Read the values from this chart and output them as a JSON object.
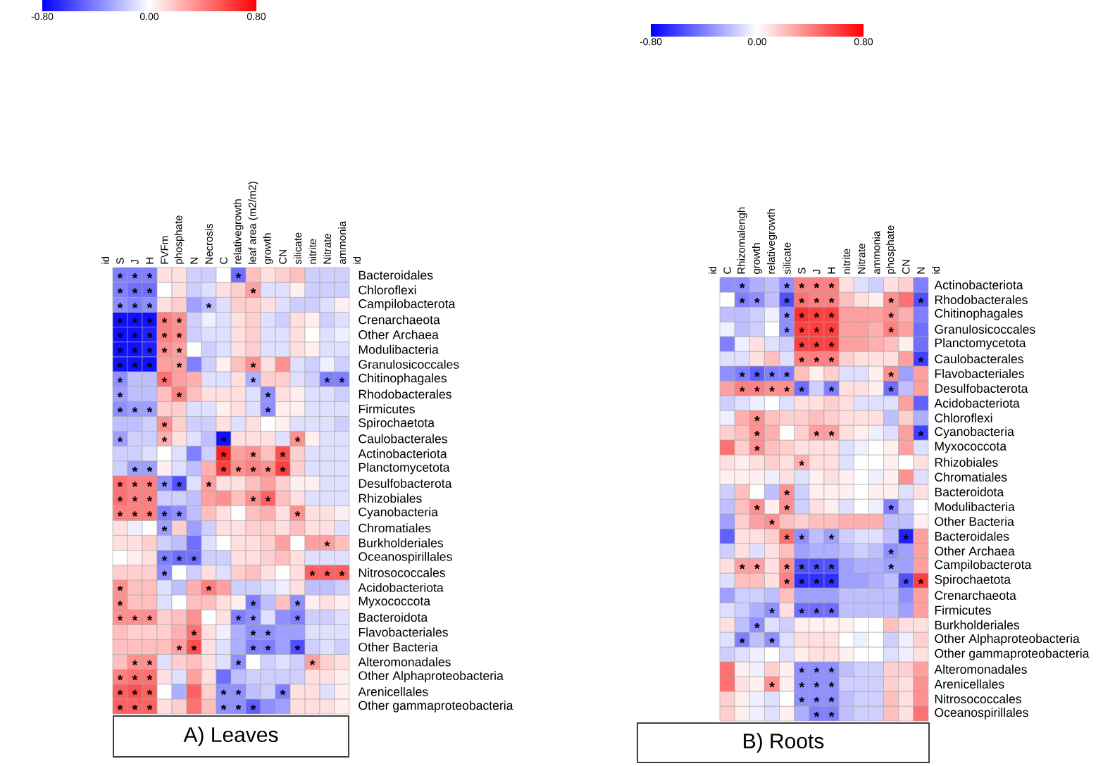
{
  "chart_data": [
    {
      "type": "heatmap",
      "title": "A) Leaves",
      "categories": [
        "S",
        "J",
        "H",
        "FVFm",
        "phosphate",
        "N",
        "Necrosis",
        "C",
        "relativegrowth",
        "leaf area (m2/m2)",
        "growth",
        "CN",
        "silicate",
        "nitrite",
        "Nitrate",
        "ammonia"
      ],
      "y_categories": [
        "Bacteroidales",
        "Chloroflexi",
        "Campilobacterota",
        "Crenarchaeota",
        "Other Archaea",
        "Modulibacteria",
        "Granulosicoccales",
        "Chitinophagales",
        "Rhodobacterales",
        "Firmicutes",
        "Spirochaetota",
        "Caulobacterales",
        "Actinobacteriota",
        "Planctomycetota",
        "Desulfobacterota",
        "Rhizobiales",
        "Cyanobacteria",
        "Chromatiales",
        "Burkholderiales",
        "Oceanospirillales",
        "Nitrosococcales",
        "Acidobacteriota",
        "Myxococcota",
        "Bacteroidota",
        "Flavobacteriales",
        "Other Bacteria",
        "Alteromonadales",
        "Other Alphaproteobacteria",
        "Arenicellales",
        "Other gammaproteobacteria"
      ],
      "cells": [
        [
          -0.4,
          -0.4,
          -0.4,
          0.1,
          0.1,
          -0.15,
          -0.15,
          0,
          -0.45,
          0.2,
          0.1,
          0.15,
          0.2,
          -0.15,
          -0.15,
          -0.15
        ],
        [
          -0.4,
          -0.45,
          -0.45,
          0,
          0.1,
          -0.15,
          -0.1,
          0.1,
          0.15,
          0.3,
          -0.1,
          -0.1,
          0.05,
          -0.15,
          -0.15,
          -0.15
        ],
        [
          -0.35,
          -0.4,
          -0.35,
          0.1,
          0.15,
          -0.3,
          -0.2,
          -0.1,
          0.15,
          0.15,
          0.1,
          -0.1,
          -0.15,
          -0.15,
          -0.1,
          0.05
        ],
        [
          -0.75,
          -0.75,
          -0.75,
          0.4,
          0.35,
          -0.15,
          -0.05,
          -0.1,
          0.1,
          0.15,
          -0.1,
          -0.15,
          0.1,
          0.05,
          -0.15,
          -0.1
        ],
        [
          -0.75,
          -0.75,
          -0.7,
          0.4,
          0.35,
          -0.15,
          -0.1,
          -0.1,
          0.1,
          0.15,
          -0.1,
          -0.1,
          0.1,
          0,
          -0.1,
          -0.05
        ],
        [
          -0.75,
          -0.75,
          -0.7,
          0.35,
          0.3,
          0,
          -0.15,
          -0.1,
          0.1,
          0.15,
          -0.1,
          -0.1,
          0.1,
          0.05,
          -0.1,
          -0.1
        ],
        [
          -0.75,
          -0.75,
          -0.75,
          0.3,
          0.3,
          -0.4,
          -0.15,
          0.05,
          0.2,
          0.35,
          0.1,
          0.35,
          -0.1,
          -0.15,
          -0.05,
          -0.15
        ],
        [
          -0.35,
          -0.2,
          -0.2,
          0.45,
          0.3,
          0.25,
          -0.1,
          -0.1,
          0.1,
          -0.25,
          0.15,
          0.15,
          -0.1,
          -0.15,
          -0.4,
          -0.4
        ],
        [
          -0.3,
          -0.2,
          -0.2,
          0.2,
          0.4,
          0.2,
          0.1,
          0.1,
          0.1,
          -0.1,
          -0.35,
          0.1,
          0.05,
          -0.1,
          -0.1,
          -0.15
        ],
        [
          -0.35,
          -0.3,
          -0.3,
          0.15,
          0.15,
          -0.1,
          -0.1,
          0.05,
          0.1,
          -0.1,
          -0.35,
          0.05,
          0.05,
          -0.1,
          -0.1,
          -0.1
        ],
        [
          -0.2,
          -0.2,
          -0.15,
          0.35,
          0.15,
          -0.15,
          -0.15,
          0.1,
          -0.1,
          0.1,
          0,
          0.05,
          -0.1,
          -0.1,
          -0.1,
          -0.15
        ],
        [
          -0.3,
          -0.15,
          -0.15,
          0.25,
          0.1,
          -0.1,
          -0.2,
          -0.75,
          0.1,
          0.1,
          0.1,
          -0.1,
          0.35,
          0.05,
          -0.1,
          -0.1
        ],
        [
          -0.15,
          -0.15,
          -0.1,
          0,
          -0.1,
          -0.4,
          -0.15,
          0.7,
          0.3,
          0.35,
          0.2,
          0.55,
          0.15,
          -0.1,
          -0.1,
          -0.1
        ],
        [
          -0.15,
          -0.3,
          -0.3,
          0.05,
          -0.1,
          -0.2,
          0.25,
          0.6,
          0.35,
          0.4,
          0.35,
          0.6,
          0.15,
          -0.1,
          -0.1,
          -0.1
        ],
        [
          0.45,
          0.4,
          0.4,
          -0.35,
          -0.55,
          -0.1,
          0.3,
          0.1,
          0.1,
          0.2,
          0.3,
          0.15,
          0.05,
          0.05,
          -0.1,
          -0.1
        ],
        [
          0.45,
          0.4,
          0.4,
          -0.15,
          -0.15,
          -0.2,
          0.3,
          0.35,
          0.2,
          0.35,
          0.5,
          0.2,
          0.1,
          -0.1,
          -0.1,
          -0.1
        ],
        [
          0.4,
          0.4,
          0.4,
          -0.4,
          -0.35,
          -0.2,
          0.2,
          0.1,
          0,
          0.2,
          0.25,
          0.1,
          0.35,
          0.1,
          0.1,
          0.05
        ],
        [
          0.1,
          -0.05,
          0,
          -0.3,
          0.15,
          -0.3,
          -0.15,
          0.1,
          0.1,
          0.15,
          0.15,
          0.1,
          0.2,
          0.1,
          0.1,
          -0.1
        ],
        [
          0.1,
          0.1,
          0.15,
          -0.15,
          -0.2,
          -0.45,
          -0.1,
          0,
          0.1,
          0.1,
          0.15,
          0.3,
          0,
          0.3,
          0.3,
          0.2
        ],
        [
          0,
          0.05,
          0.1,
          -0.4,
          -0.45,
          -0.45,
          -0.15,
          -0.15,
          0.1,
          0.1,
          0.15,
          0.2,
          0.1,
          -0.1,
          -0.1,
          -0.1
        ],
        [
          0.15,
          0.15,
          0.15,
          -0.35,
          0,
          -0.15,
          0.1,
          -0.1,
          0.15,
          0.2,
          0.1,
          0,
          0.1,
          0.5,
          0.5,
          0.5
        ],
        [
          0.35,
          0.2,
          0.2,
          -0.1,
          -0.2,
          0.25,
          0.4,
          0.3,
          -0.15,
          -0.15,
          -0.1,
          -0.05,
          0.1,
          -0.2,
          -0.2,
          -0.15
        ],
        [
          0.35,
          0.2,
          0.2,
          -0.1,
          0,
          0.2,
          0.2,
          0.1,
          0.05,
          -0.4,
          -0.2,
          0.2,
          -0.35,
          0.05,
          0.1,
          0.05
        ],
        [
          0.35,
          0.35,
          0.35,
          0.15,
          0.2,
          0.35,
          0,
          0.1,
          -0.4,
          -0.35,
          -0.1,
          -0.35,
          -0.4,
          -0.15,
          -0.15,
          -0.1
        ],
        [
          0.2,
          0.15,
          0.15,
          0.15,
          0.25,
          0.45,
          0.1,
          -0.05,
          -0.25,
          -0.35,
          -0.35,
          -0.3,
          -0.3,
          -0.1,
          -0.1,
          -0.1
        ],
        [
          0.2,
          0.2,
          0.2,
          0.2,
          0.3,
          0.55,
          0.1,
          -0.1,
          -0.25,
          -0.4,
          -0.4,
          -0.3,
          -0.55,
          -0.15,
          -0.1,
          -0.15
        ],
        [
          0.2,
          0.35,
          0.35,
          -0.1,
          0.15,
          0.2,
          0.1,
          -0.1,
          -0.35,
          0,
          -0.15,
          -0.1,
          -0.15,
          0.3,
          0.15,
          0.1
        ],
        [
          0.4,
          0.45,
          0.45,
          0.1,
          -0.1,
          0.3,
          0.1,
          -0.45,
          -0.2,
          -0.15,
          -0.15,
          -0.15,
          -0.15,
          0.1,
          0.1,
          0.05
        ],
        [
          0.5,
          0.55,
          0.5,
          0,
          -0.25,
          0.5,
          0.15,
          -0.35,
          -0.35,
          -0.2,
          -0.15,
          -0.4,
          0.1,
          0.1,
          -0.1,
          0.05
        ],
        [
          0.5,
          0.5,
          0.5,
          0.1,
          0.15,
          0.45,
          0.2,
          -0.35,
          -0.35,
          -0.5,
          -0.35,
          -0.3,
          0.1,
          0.1,
          0.1,
          0.05
        ]
      ],
      "cell_labels": [
        [
          "*",
          "*",
          "*",
          null,
          null,
          null,
          null,
          null,
          "*",
          null,
          null,
          null,
          null,
          null,
          null,
          null
        ],
        [
          "*",
          "*",
          "*",
          null,
          null,
          null,
          null,
          null,
          null,
          "*",
          null,
          null,
          null,
          null,
          null,
          null
        ],
        [
          "*",
          "*",
          "*",
          null,
          null,
          null,
          "*",
          null,
          null,
          null,
          null,
          null,
          null,
          null,
          null,
          null
        ],
        [
          "*",
          "*",
          "*",
          "*",
          "*",
          null,
          null,
          null,
          null,
          null,
          null,
          null,
          null,
          null,
          null,
          null
        ],
        [
          "*",
          "*",
          "*",
          "*",
          "*",
          null,
          null,
          null,
          null,
          null,
          null,
          null,
          null,
          null,
          null,
          null
        ],
        [
          "*",
          "*",
          "*",
          "*",
          "*",
          null,
          null,
          null,
          null,
          null,
          null,
          null,
          null,
          null,
          null,
          null
        ],
        [
          "*",
          "*",
          "*",
          null,
          "*",
          null,
          null,
          null,
          null,
          "*",
          null,
          null,
          null,
          null,
          null,
          null
        ],
        [
          "*",
          null,
          null,
          "*",
          null,
          null,
          null,
          null,
          null,
          "*",
          null,
          null,
          null,
          null,
          "*",
          "*"
        ],
        [
          "*",
          null,
          null,
          null,
          "*",
          null,
          null,
          null,
          null,
          null,
          "*",
          null,
          null,
          null,
          null,
          null
        ],
        [
          "*",
          "*",
          "*",
          null,
          null,
          null,
          null,
          null,
          null,
          null,
          "*",
          null,
          null,
          null,
          null,
          null
        ],
        [
          null,
          null,
          null,
          "*",
          null,
          null,
          null,
          null,
          null,
          null,
          null,
          null,
          null,
          null,
          null,
          null
        ],
        [
          "*",
          null,
          null,
          "*",
          null,
          null,
          null,
          "*",
          null,
          null,
          null,
          null,
          "*",
          null,
          null,
          null
        ],
        [
          null,
          null,
          null,
          null,
          null,
          null,
          null,
          "*",
          null,
          "*",
          null,
          "*",
          null,
          null,
          null,
          null
        ],
        [
          null,
          "*",
          "*",
          null,
          null,
          null,
          null,
          "*",
          "*",
          "*",
          "*",
          "*",
          null,
          null,
          null,
          null
        ],
        [
          "*",
          "*",
          "*",
          "*",
          "*",
          null,
          "*",
          null,
          null,
          null,
          null,
          null,
          null,
          null,
          null,
          null
        ],
        [
          "*",
          "*",
          "*",
          null,
          null,
          null,
          null,
          null,
          null,
          "*",
          "*",
          null,
          null,
          null,
          null,
          null
        ],
        [
          "*",
          "*",
          "*",
          "*",
          "*",
          null,
          null,
          null,
          null,
          null,
          null,
          null,
          "*",
          null,
          null,
          null
        ],
        [
          null,
          null,
          null,
          "*",
          null,
          null,
          null,
          null,
          null,
          null,
          null,
          null,
          null,
          null,
          null,
          null
        ],
        [
          null,
          null,
          null,
          null,
          null,
          null,
          null,
          null,
          null,
          null,
          null,
          null,
          null,
          null,
          "*",
          null
        ],
        [
          null,
          null,
          null,
          "*",
          "*",
          "*",
          null,
          null,
          null,
          null,
          null,
          null,
          null,
          null,
          null,
          null
        ],
        [
          null,
          null,
          null,
          "*",
          null,
          null,
          null,
          null,
          null,
          null,
          null,
          null,
          null,
          "*",
          "*",
          "*"
        ],
        [
          "*",
          null,
          null,
          null,
          null,
          null,
          "*",
          null,
          null,
          null,
          null,
          null,
          null,
          null,
          null,
          null
        ],
        [
          "*",
          null,
          null,
          null,
          null,
          null,
          null,
          null,
          null,
          "*",
          null,
          null,
          "*",
          null,
          null,
          null
        ],
        [
          "*",
          "*",
          "*",
          null,
          null,
          null,
          null,
          null,
          "*",
          "*",
          null,
          null,
          "*",
          null,
          null,
          null
        ],
        [
          null,
          null,
          null,
          null,
          null,
          "*",
          null,
          null,
          null,
          "*",
          "*",
          null,
          null,
          null,
          null,
          null
        ],
        [
          null,
          null,
          null,
          null,
          "*",
          "*",
          null,
          null,
          null,
          "*",
          "*",
          null,
          "*",
          null,
          null,
          null
        ],
        [
          null,
          "*",
          "*",
          null,
          null,
          null,
          null,
          null,
          "*",
          null,
          null,
          null,
          null,
          "*",
          null,
          null
        ],
        [
          "*",
          "*",
          "*",
          null,
          null,
          null,
          null,
          null,
          null,
          null,
          null,
          null,
          null,
          null,
          null,
          null
        ],
        [
          "*",
          "*",
          "*",
          null,
          null,
          null,
          null,
          "*",
          "*",
          null,
          null,
          "*",
          null,
          null,
          null,
          null
        ],
        [
          "*",
          "*",
          "*",
          null,
          null,
          null,
          null,
          "*",
          "*",
          "*",
          null,
          null,
          null,
          null,
          null,
          null
        ]
      ],
      "clim": [
        -0.8,
        0.8
      ],
      "cticks": [
        {
          "value": -0.8,
          "label": "-0.80"
        },
        {
          "value": 0,
          "label": "0.00"
        },
        {
          "value": 0.8,
          "label": "0.80"
        }
      ],
      "annotations": [
        "id",
        "id"
      ]
    },
    {
      "type": "heatmap",
      "title": "B) Roots",
      "categories": [
        "C",
        "Rhizomalengh",
        "growth",
        "relativegrowth",
        "silicate",
        "S",
        "J",
        "H",
        "nitrite",
        "Nitrate",
        "ammonia",
        "phosphate",
        "CN",
        "N"
      ],
      "y_categories": [
        "Actinobacteriota",
        "Rhodobacterales",
        "Chitinophagales",
        "Granulosicoccales",
        "Planctomycetota",
        "Caulobacterales",
        "Flavobacteriales",
        "Desulfobacterota",
        "Acidobacteriota",
        "Chloroflexi",
        "Cyanobacteria",
        "Myxococcota",
        "Rhizobiales",
        "Chromatiales",
        "Bacteroidota",
        "Modulibacteria",
        "Other Bacteria",
        "Bacteroidales",
        "Other Archaea",
        "Campilobacterota",
        "Spirochaetota",
        "Crenarchaeota",
        "Firmicutes",
        "Burkholderiales",
        "Other Alphaproteobacteria",
        "Other gammaproteobacteria",
        "Alteromonadales",
        "Arenicellales",
        "Nitrosococcales",
        "Oceanospirillales"
      ],
      "cells": [
        [
          -0.35,
          -0.35,
          -0.25,
          -0.2,
          -0.35,
          0.4,
          0.4,
          0.4,
          0.1,
          -0.1,
          -0.15,
          0.1,
          0.15,
          -0.4
        ],
        [
          0,
          -0.4,
          -0.35,
          -0.2,
          -0.55,
          0.45,
          0.4,
          0.4,
          0.2,
          0.1,
          0.05,
          0.35,
          0.45,
          -0.55
        ],
        [
          -0.2,
          -0.2,
          -0.15,
          -0.05,
          -0.35,
          0.65,
          0.6,
          0.6,
          0.3,
          0.3,
          0.3,
          0.35,
          0.25,
          -0.4
        ],
        [
          -0.05,
          -0.2,
          -0.15,
          0,
          -0.35,
          0.6,
          0.6,
          0.6,
          0.3,
          0.3,
          0.25,
          0.4,
          0.3,
          -0.45
        ],
        [
          -0.4,
          -0.05,
          0.1,
          -0.1,
          -0.15,
          0.6,
          0.6,
          0.6,
          0.3,
          0.3,
          0.25,
          0.2,
          0.05,
          -0.45
        ],
        [
          -0.1,
          -0.1,
          0.1,
          0.2,
          -0.1,
          0.4,
          0.4,
          0.4,
          0.15,
          0.1,
          0.1,
          0.1,
          0.3,
          -0.6
        ],
        [
          -0.35,
          -0.4,
          -0.5,
          -0.4,
          -0.4,
          0.2,
          0.05,
          0.15,
          -0.1,
          -0.1,
          0.05,
          0.35,
          -0.3,
          0.3
        ],
        [
          0.3,
          0.4,
          0.4,
          0.35,
          0.35,
          -0.45,
          -0.15,
          -0.4,
          0.1,
          0.1,
          0.05,
          -0.45,
          -0.2,
          0.3
        ],
        [
          -0.15,
          -0.1,
          -0.05,
          0,
          -0.1,
          0.1,
          0.1,
          0.15,
          0.1,
          -0.1,
          -0.1,
          -0.1,
          0.3,
          -0.5
        ],
        [
          -0.05,
          0.25,
          0.35,
          0.2,
          0.15,
          0.15,
          0.2,
          0.15,
          0.1,
          0.1,
          0.1,
          -0.2,
          0.15,
          -0.25
        ],
        [
          0.15,
          0.2,
          0.35,
          0.25,
          0,
          0.15,
          0.3,
          0.3,
          0.1,
          0.05,
          -0.05,
          -0.1,
          0.3,
          -0.6
        ],
        [
          0.45,
          0.15,
          0.35,
          0.2,
          0.15,
          0.1,
          0.1,
          0.1,
          -0.1,
          -0.05,
          0,
          0.05,
          0.3,
          -0.1
        ],
        [
          0.1,
          0.05,
          0.1,
          0.15,
          0.1,
          0.25,
          0.1,
          0.1,
          -0.1,
          0,
          0,
          0.05,
          0,
          0.1
        ],
        [
          0.05,
          0.05,
          0.05,
          -0.05,
          0.1,
          -0.1,
          0.05,
          0.1,
          0.05,
          0,
          -0.05,
          0.05,
          0.35,
          -0.1
        ],
        [
          -0.15,
          0.2,
          0,
          -0.2,
          0.35,
          -0.15,
          0.05,
          0.05,
          0.05,
          0,
          0.05,
          0.05,
          -0.1,
          0.1
        ],
        [
          -0.2,
          0.2,
          0.35,
          0.05,
          0.35,
          -0.15,
          0.1,
          0.05,
          -0.1,
          0,
          -0.05,
          -0.4,
          -0.15,
          0
        ],
        [
          -0.3,
          0.15,
          0.3,
          0.35,
          0.2,
          0.15,
          0.2,
          0.2,
          0.25,
          0.25,
          0.25,
          -0.2,
          -0.2,
          0.05
        ],
        [
          -0.5,
          0.1,
          0.1,
          0.15,
          0.45,
          -0.35,
          -0.2,
          -0.3,
          -0.15,
          -0.1,
          -0.1,
          -0.2,
          -0.7,
          0.3
        ],
        [
          -0.15,
          0.1,
          -0.1,
          0.1,
          0.2,
          -0.3,
          -0.25,
          -0.25,
          -0.2,
          -0.15,
          -0.2,
          -0.35,
          -0.3,
          0.3
        ],
        [
          0.1,
          0.3,
          0.3,
          0.1,
          0.35,
          -0.55,
          -0.55,
          -0.55,
          -0.3,
          -0.25,
          -0.25,
          -0.3,
          -0.3,
          0.3
        ],
        [
          -0.1,
          0.2,
          0.2,
          0.1,
          0.4,
          -0.65,
          -0.65,
          -0.65,
          -0.3,
          -0.3,
          -0.25,
          -0.2,
          -0.55,
          0.6
        ],
        [
          -0.3,
          -0.15,
          -0.15,
          -0.2,
          0.2,
          -0.3,
          -0.3,
          -0.3,
          -0.2,
          -0.2,
          -0.2,
          -0.2,
          -0.35,
          0.3
        ],
        [
          -0.1,
          -0.15,
          -0.25,
          -0.35,
          0.1,
          -0.45,
          -0.45,
          -0.45,
          -0.2,
          -0.2,
          -0.2,
          -0.2,
          -0.3,
          0.3
        ],
        [
          0.1,
          -0.2,
          -0.35,
          -0.1,
          -0.15,
          0.05,
          0.05,
          0.05,
          0.05,
          0,
          0,
          0.2,
          0.1,
          0.1
        ],
        [
          -0.1,
          -0.4,
          -0.2,
          -0.35,
          -0.1,
          0.1,
          0.1,
          0.1,
          0,
          -0.05,
          0,
          -0.15,
          -0.05,
          0.15
        ],
        [
          -0.15,
          -0.1,
          -0.05,
          0,
          -0.1,
          0.05,
          0.1,
          0.1,
          0.05,
          0,
          0,
          -0.1,
          -0.05,
          0.1
        ],
        [
          0.45,
          0.05,
          -0.05,
          0.15,
          0.05,
          -0.35,
          -0.35,
          -0.35,
          -0.2,
          -0.15,
          -0.15,
          0.15,
          0.15,
          0.3
        ],
        [
          0.45,
          0.1,
          0.05,
          0.35,
          0.05,
          -0.35,
          -0.35,
          -0.35,
          -0.15,
          -0.15,
          -0.15,
          0.15,
          0.1,
          0.35
        ],
        [
          0.15,
          0.05,
          -0.05,
          -0.1,
          0,
          -0.35,
          -0.35,
          -0.35,
          -0.2,
          -0.15,
          -0.15,
          0.2,
          0.1,
          0.35
        ],
        [
          0.15,
          0.05,
          -0.05,
          -0.1,
          0.05,
          -0.25,
          -0.4,
          -0.4,
          -0.2,
          -0.15,
          -0.15,
          0.2,
          0.1,
          0.45
        ]
      ],
      "cell_labels": [
        [
          null,
          "*",
          null,
          null,
          "*",
          "*",
          "*",
          "*",
          null,
          null,
          null,
          null,
          null,
          null
        ],
        [
          null,
          "*",
          "*",
          null,
          "*",
          "*",
          "*",
          "*",
          null,
          null,
          null,
          "*",
          null,
          "*"
        ],
        [
          null,
          null,
          null,
          null,
          "*",
          "*",
          "*",
          "*",
          null,
          null,
          null,
          "*",
          null,
          null
        ],
        [
          null,
          null,
          null,
          null,
          "*",
          "*",
          "*",
          "*",
          null,
          null,
          null,
          "*",
          null,
          null
        ],
        [
          null,
          null,
          null,
          null,
          null,
          "*",
          "*",
          "*",
          null,
          null,
          null,
          null,
          null,
          null
        ],
        [
          null,
          null,
          null,
          null,
          null,
          "*",
          "*",
          "*",
          null,
          null,
          null,
          null,
          null,
          "*"
        ],
        [
          null,
          "*",
          "*",
          "*",
          "*",
          null,
          null,
          null,
          null,
          null,
          null,
          "*",
          null,
          null
        ],
        [
          null,
          "*",
          "*",
          "*",
          "*",
          "*",
          null,
          "*",
          null,
          null,
          null,
          "*",
          null,
          null
        ],
        [
          null,
          null,
          null,
          null,
          null,
          null,
          null,
          null,
          null,
          null,
          null,
          null,
          null,
          null
        ],
        [
          null,
          null,
          "*",
          null,
          null,
          null,
          null,
          null,
          null,
          null,
          null,
          null,
          null,
          null
        ],
        [
          null,
          null,
          "*",
          null,
          null,
          null,
          "*",
          "*",
          null,
          null,
          null,
          null,
          null,
          "*"
        ],
        [
          null,
          null,
          "*",
          null,
          null,
          null,
          null,
          null,
          null,
          null,
          null,
          null,
          null,
          null
        ],
        [
          null,
          null,
          null,
          null,
          null,
          "*",
          null,
          null,
          null,
          null,
          null,
          null,
          null,
          null
        ],
        [
          null,
          null,
          null,
          null,
          null,
          null,
          null,
          null,
          null,
          null,
          null,
          null,
          null,
          null
        ],
        [
          null,
          null,
          null,
          null,
          "*",
          null,
          null,
          null,
          null,
          null,
          null,
          null,
          null,
          null
        ],
        [
          null,
          null,
          "*",
          null,
          "*",
          null,
          null,
          null,
          null,
          null,
          null,
          "*",
          null,
          null
        ],
        [
          null,
          null,
          null,
          "*",
          null,
          null,
          null,
          null,
          null,
          null,
          null,
          null,
          null,
          null
        ],
        [
          null,
          null,
          null,
          null,
          "*",
          "*",
          null,
          "*",
          null,
          null,
          null,
          null,
          "*",
          null
        ],
        [
          null,
          null,
          null,
          null,
          null,
          null,
          null,
          null,
          null,
          null,
          null,
          "*",
          null,
          null
        ],
        [
          null,
          "*",
          "*",
          null,
          "*",
          "*",
          "*",
          "*",
          null,
          null,
          null,
          "*",
          null,
          null
        ],
        [
          null,
          null,
          null,
          null,
          "*",
          "*",
          "*",
          "*",
          null,
          null,
          null,
          null,
          "*",
          "*"
        ],
        [
          null,
          null,
          null,
          null,
          null,
          null,
          null,
          null,
          null,
          null,
          null,
          null,
          null,
          null
        ],
        [
          null,
          null,
          null,
          "*",
          null,
          "*",
          "*",
          "*",
          null,
          null,
          null,
          null,
          null,
          null
        ],
        [
          null,
          null,
          "*",
          null,
          null,
          null,
          null,
          null,
          null,
          null,
          null,
          null,
          null,
          null
        ],
        [
          null,
          "*",
          null,
          "*",
          null,
          null,
          null,
          null,
          null,
          null,
          null,
          null,
          null,
          null
        ],
        [
          null,
          null,
          null,
          null,
          null,
          null,
          null,
          null,
          null,
          null,
          null,
          null,
          null,
          null
        ],
        [
          null,
          null,
          null,
          null,
          null,
          "*",
          "*",
          "*",
          null,
          null,
          null,
          null,
          null,
          null
        ],
        [
          null,
          null,
          null,
          "*",
          null,
          "*",
          "*",
          "*",
          null,
          null,
          null,
          null,
          null,
          null
        ],
        [
          null,
          null,
          null,
          null,
          null,
          "*",
          "*",
          "*",
          null,
          null,
          null,
          null,
          null,
          null
        ],
        [
          null,
          null,
          null,
          null,
          null,
          null,
          "*",
          "*",
          null,
          null,
          null,
          null,
          null,
          null
        ]
      ],
      "clim": [
        -0.8,
        0.8
      ],
      "cticks": [
        {
          "value": -0.8,
          "label": "-0.80"
        },
        {
          "value": 0,
          "label": "0.00"
        },
        {
          "value": 0.8,
          "label": "0.80"
        }
      ],
      "annotations": [
        "id",
        "id"
      ]
    }
  ]
}
